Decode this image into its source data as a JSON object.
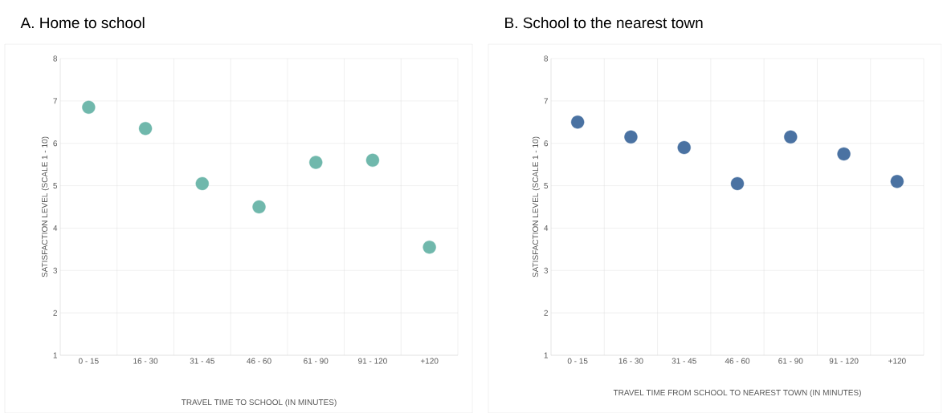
{
  "chart_data": [
    {
      "type": "scatter",
      "title": "A. Home to school",
      "xlabel": "TRAVEL TIME TO SCHOOL (IN MINUTES)",
      "ylabel": "SATISFACTION LEVEL (SCALE 1 - 10)",
      "categories": [
        "0 - 15",
        "16 - 30",
        "31 - 45",
        "46 - 60",
        "61 - 90",
        "91 - 120",
        "+120"
      ],
      "series": [
        {
          "color": "#70b8ac",
          "values": [
            6.85,
            6.35,
            5.05,
            4.5,
            5.55,
            5.6,
            3.55
          ]
        }
      ],
      "ylim": [
        1,
        8
      ],
      "yticks": [
        1,
        2,
        3,
        4,
        5,
        6,
        7,
        8
      ],
      "grid": true,
      "marker": "circle"
    },
    {
      "type": "scatter",
      "title": "B. School to the nearest town",
      "xlabel": "TRAVEL TIME FROM SCHOOL TO NEAREST TOWN (IN MINUTES)",
      "ylabel": "SATISFACTION LEVEL (SCALE 1 - 10)",
      "categories": [
        "0 - 15",
        "16 - 30",
        "31 - 45",
        "46 - 60",
        "61 - 90",
        "91 - 120",
        "+120"
      ],
      "series": [
        {
          "color": "#4a72a2",
          "values": [
            6.5,
            6.15,
            5.9,
            5.05,
            6.15,
            5.75,
            5.1
          ]
        }
      ],
      "ylim": [
        1,
        8
      ],
      "yticks": [
        1,
        2,
        3,
        4,
        5,
        6,
        7,
        8
      ],
      "grid": true,
      "marker": "circle"
    }
  ]
}
